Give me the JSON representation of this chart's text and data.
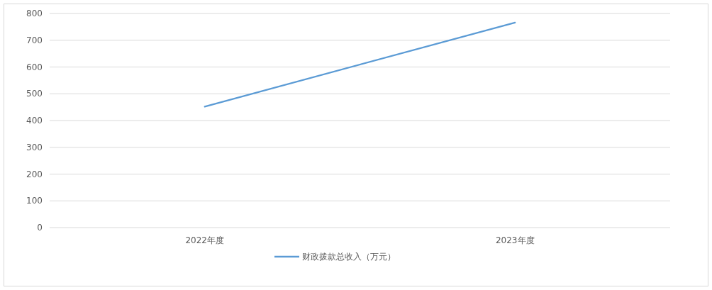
{
  "chart_data": {
    "type": "line",
    "categories": [
      "2022年度",
      "2023年度"
    ],
    "series": [
      {
        "name": "财政拨款总收入（万元）",
        "color": "#5b9bd5",
        "values": [
          452,
          766
        ]
      }
    ],
    "ylim": [
      0,
      800
    ],
    "yticks": [
      0,
      100,
      200,
      300,
      400,
      500,
      600,
      700,
      800
    ],
    "grid": "y",
    "legend": "bottom",
    "marker": "none",
    "line_style": "solid"
  }
}
